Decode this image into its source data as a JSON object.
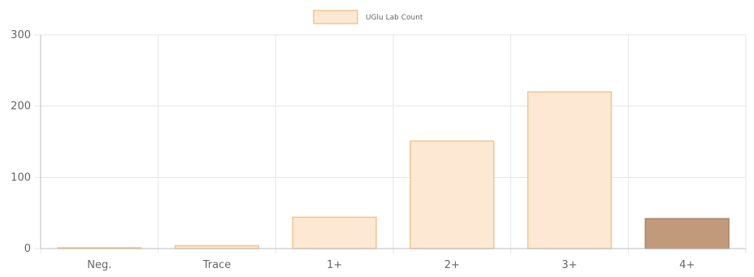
{
  "chart_data": {
    "type": "bar",
    "categories": [
      "Neg.",
      "Trace",
      "1+",
      "2+",
      "3+",
      "4+"
    ],
    "series": [
      {
        "name": "UGlu Lab Count",
        "values": [
          1,
          4,
          44,
          151,
          220,
          42
        ]
      }
    ],
    "ylim": [
      0,
      300
    ],
    "yticks": [
      0,
      100,
      200,
      300
    ],
    "grid": true,
    "legend_position": "top-center",
    "colors": {
      "bar_fill": "#fde9d3",
      "bar_border": "#f4c48c",
      "highlight_fill": "#c09a7b",
      "highlight_border": "#ad8465",
      "grid": "#e6e6e6",
      "axis": "#bdbdbd",
      "text": "#666666"
    },
    "highlight_index": 5
  }
}
